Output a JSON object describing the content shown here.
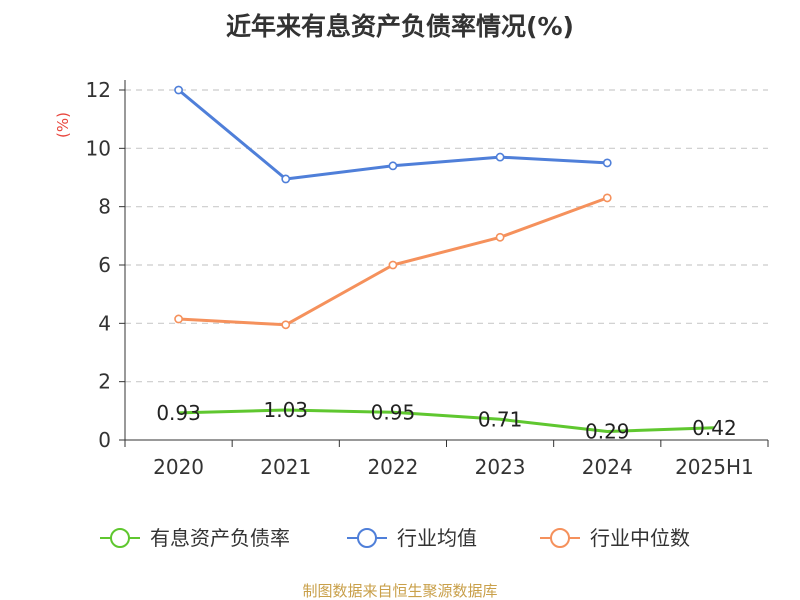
{
  "chart_data": {
    "type": "line",
    "title": "近年来有息资产负债率情况(%)",
    "ylabel": "(%)",
    "xlabel": "",
    "categories": [
      "2020",
      "2021",
      "2022",
      "2023",
      "2024",
      "2025H1"
    ],
    "ylim": [
      0,
      12
    ],
    "yticks": [
      0,
      2,
      4,
      6,
      8,
      10,
      12
    ],
    "grid": true,
    "legend_position": "bottom",
    "series": [
      {
        "name": "有息资产负债率",
        "color": "#5fc72f",
        "values": [
          0.93,
          1.03,
          0.95,
          0.71,
          0.29,
          0.42
        ],
        "labels": [
          "0.93",
          "1.03",
          "0.95",
          "0.71",
          "0.29",
          "0.42"
        ],
        "show_markers": false
      },
      {
        "name": "行业均值",
        "color": "#4f7fd9",
        "values": [
          12.0,
          8.95,
          9.4,
          9.7,
          9.5,
          null
        ],
        "show_markers": true
      },
      {
        "name": "行业中位数",
        "color": "#f5915c",
        "values": [
          4.15,
          3.95,
          6.0,
          6.95,
          8.3,
          null
        ],
        "show_markers": true
      }
    ]
  },
  "source": "制图数据来自恒生聚源数据库"
}
